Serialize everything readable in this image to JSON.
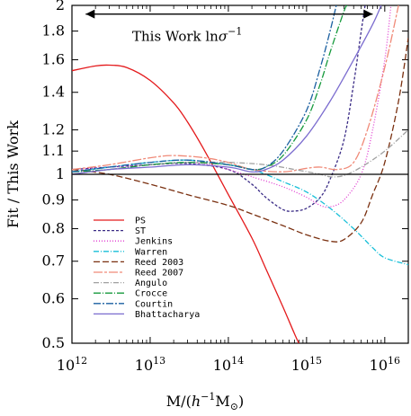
{
  "chart_data": {
    "type": "line",
    "xlabel": "M/(h⁻¹M⊙)",
    "ylabel": "Fit / This Work",
    "xscale": "log",
    "yscale": "log",
    "xlim": [
      1000000000000.0,
      2e+16
    ],
    "ylim": [
      0.5,
      2
    ],
    "x_ticks": [
      {
        "value": 1000000000000.0,
        "base": "10",
        "exp": "12"
      },
      {
        "value": 10000000000000.0,
        "base": "10",
        "exp": "13"
      },
      {
        "value": 100000000000000.0,
        "base": "10",
        "exp": "14"
      },
      {
        "value": 1000000000000000.0,
        "base": "10",
        "exp": "15"
      },
      {
        "value": 1e+16,
        "base": "10",
        "exp": "16"
      }
    ],
    "y_ticks": [
      {
        "value": 0.5,
        "label": "0.5"
      },
      {
        "value": 0.6,
        "label": "0.6"
      },
      {
        "value": 0.7,
        "label": "0.7"
      },
      {
        "value": 0.8,
        "label": "0.8"
      },
      {
        "value": 0.9,
        "label": "0.9"
      },
      {
        "value": 1.0,
        "label": "1"
      },
      {
        "value": 1.1,
        "label": "1.1"
      },
      {
        "value": 1.2,
        "label": "1.2"
      },
      {
        "value": 1.4,
        "label": "1.4"
      },
      {
        "value": 1.6,
        "label": "1.6"
      },
      {
        "value": 1.8,
        "label": "1.8"
      },
      {
        "value": 2.0,
        "label": "2"
      }
    ],
    "reference_line": 1.0,
    "annotation": {
      "text": "This Work ln",
      "sigma": "σ",
      "sup": "−1",
      "x_range": [
        1500000000000.0,
        7000000000000000.0
      ],
      "y": 1.93
    },
    "legend_position": "lower-left",
    "series": [
      {
        "name": "PS",
        "color": "#e41a1c",
        "dash": "",
        "points": [
          [
            1000000000000.0,
            1.53
          ],
          [
            2000000000000.0,
            1.56
          ],
          [
            3000000000000.0,
            1.565
          ],
          [
            5000000000000.0,
            1.55
          ],
          [
            10000000000000.0,
            1.47
          ],
          [
            20000000000000.0,
            1.34
          ],
          [
            30000000000000.0,
            1.24
          ],
          [
            50000000000000.0,
            1.1
          ],
          [
            100000000000000.0,
            0.92
          ],
          [
            200000000000000.0,
            0.77
          ],
          [
            300000000000000.0,
            0.68
          ],
          [
            500000000000000.0,
            0.58
          ],
          [
            700000000000000.0,
            0.52
          ],
          [
            850000000000000.0,
            0.49
          ]
        ]
      },
      {
        "name": "ST",
        "color": "#3b2c86",
        "dash": "3,2",
        "points": [
          [
            1000000000000.0,
            1.02
          ],
          [
            3000000000000.0,
            1.03
          ],
          [
            10000000000000.0,
            1.04
          ],
          [
            30000000000000.0,
            1.045
          ],
          [
            100000000000000.0,
            1.02
          ],
          [
            200000000000000.0,
            0.96
          ],
          [
            300000000000000.0,
            0.91
          ],
          [
            500000000000000.0,
            0.865
          ],
          [
            700000000000000.0,
            0.86
          ],
          [
            1000000000000000.0,
            0.87
          ],
          [
            1500000000000000.0,
            0.91
          ],
          [
            2000000000000000.0,
            0.98
          ],
          [
            3000000000000000.0,
            1.15
          ],
          [
            4000000000000000.0,
            1.45
          ],
          [
            5000000000000000.0,
            1.8
          ],
          [
            5600000000000000.0,
            2.0
          ]
        ]
      },
      {
        "name": "Jenkins",
        "color": "#e03ad0",
        "dash": "1,2",
        "points": [
          [
            1000000000000.0,
            1.02
          ],
          [
            3000000000000.0,
            1.03
          ],
          [
            10000000000000.0,
            1.04
          ],
          [
            30000000000000.0,
            1.05
          ],
          [
            60000000000000.0,
            1.04
          ],
          [
            100000000000000.0,
            1.02
          ],
          [
            200000000000000.0,
            0.99
          ],
          [
            500000000000000.0,
            0.95
          ],
          [
            1000000000000000.0,
            0.91
          ],
          [
            1500000000000000.0,
            0.88
          ],
          [
            2000000000000000.0,
            0.875
          ],
          [
            3000000000000000.0,
            0.9
          ],
          [
            5000000000000000.0,
            1.0
          ],
          [
            7000000000000000.0,
            1.2
          ],
          [
            1e+16,
            1.6
          ],
          [
            1.2e+16,
            2.0
          ]
        ]
      },
      {
        "name": "Warren",
        "color": "#17bfd8",
        "dash": "6,2,1,2",
        "points": [
          [
            1000000000000.0,
            1.01
          ],
          [
            3000000000000.0,
            1.03
          ],
          [
            10000000000000.0,
            1.05
          ],
          [
            30000000000000.0,
            1.06
          ],
          [
            100000000000000.0,
            1.04
          ],
          [
            200000000000000.0,
            1.02
          ],
          [
            300000000000000.0,
            1.0
          ],
          [
            500000000000000.0,
            0.97
          ],
          [
            1000000000000000.0,
            0.93
          ],
          [
            2000000000000000.0,
            0.87
          ],
          [
            4000000000000000.0,
            0.8
          ],
          [
            7000000000000000.0,
            0.74
          ],
          [
            1e+16,
            0.71
          ],
          [
            2e+16,
            0.69
          ]
        ]
      },
      {
        "name": "Reed 2003",
        "color": "#7a3010",
        "dash": "7,3",
        "points": [
          [
            1000000000000.0,
            1.02
          ],
          [
            3000000000000.0,
            1.0
          ],
          [
            10000000000000.0,
            0.96
          ],
          [
            30000000000000.0,
            0.92
          ],
          [
            100000000000000.0,
            0.88
          ],
          [
            200000000000000.0,
            0.85
          ],
          [
            500000000000000.0,
            0.81
          ],
          [
            1000000000000000.0,
            0.78
          ],
          [
            2000000000000000.0,
            0.76
          ],
          [
            3000000000000000.0,
            0.765
          ],
          [
            5000000000000000.0,
            0.82
          ],
          [
            7000000000000000.0,
            0.92
          ],
          [
            1e+16,
            1.05
          ],
          [
            1.5e+16,
            1.35
          ],
          [
            2e+16,
            1.75
          ]
        ]
      },
      {
        "name": "Reed 2007",
        "color": "#f08a78",
        "dash": "10,2,3,2",
        "points": [
          [
            1000000000000.0,
            1.02
          ],
          [
            3000000000000.0,
            1.04
          ],
          [
            10000000000000.0,
            1.07
          ],
          [
            20000000000000.0,
            1.08
          ],
          [
            50000000000000.0,
            1.07
          ],
          [
            100000000000000.0,
            1.05
          ],
          [
            200000000000000.0,
            1.02
          ],
          [
            500000000000000.0,
            1.01
          ],
          [
            1000000000000000.0,
            1.025
          ],
          [
            1500000000000000.0,
            1.03
          ],
          [
            2500000000000000.0,
            1.02
          ],
          [
            4000000000000000.0,
            1.05
          ],
          [
            6000000000000000.0,
            1.2
          ],
          [
            1e+16,
            1.55
          ],
          [
            1.5e+16,
            2.0
          ]
        ]
      },
      {
        "name": "Angulo",
        "color": "#a0a0a0",
        "dash": "6,2,1,2",
        "points": [
          [
            1000000000000.0,
            1.0
          ],
          [
            3000000000000.0,
            1.02
          ],
          [
            10000000000000.0,
            1.04
          ],
          [
            30000000000000.0,
            1.05
          ],
          [
            100000000000000.0,
            1.05
          ],
          [
            300000000000000.0,
            1.04
          ],
          [
            700000000000000.0,
            1.02
          ],
          [
            1500000000000000.0,
            1.0
          ],
          [
            2000000000000000.0,
            0.99
          ],
          [
            3000000000000000.0,
            0.995
          ],
          [
            5000000000000000.0,
            1.03
          ],
          [
            1e+16,
            1.1
          ],
          [
            2e+16,
            1.2
          ]
        ]
      },
      {
        "name": "Crocce",
        "color": "#159a3c",
        "dash": "8,2,1,2",
        "points": [
          [
            1000000000000.0,
            1.01
          ],
          [
            3000000000000.0,
            1.02
          ],
          [
            10000000000000.0,
            1.04
          ],
          [
            30000000000000.0,
            1.05
          ],
          [
            100000000000000.0,
            1.04
          ],
          [
            200000000000000.0,
            1.02
          ],
          [
            300000000000000.0,
            1.03
          ],
          [
            500000000000000.0,
            1.08
          ],
          [
            1000000000000000.0,
            1.25
          ],
          [
            1500000000000000.0,
            1.45
          ],
          [
            2000000000000000.0,
            1.65
          ],
          [
            3000000000000000.0,
            1.95
          ],
          [
            3300000000000000.0,
            2.0
          ]
        ]
      },
      {
        "name": "Courtin",
        "color": "#1a5fa0",
        "dash": "8,2,2,2",
        "points": [
          [
            1000000000000.0,
            1.01
          ],
          [
            3000000000000.0,
            1.03
          ],
          [
            10000000000000.0,
            1.05
          ],
          [
            30000000000000.0,
            1.06
          ],
          [
            100000000000000.0,
            1.04
          ],
          [
            200000000000000.0,
            1.02
          ],
          [
            300000000000000.0,
            1.03
          ],
          [
            500000000000000.0,
            1.1
          ],
          [
            1000000000000000.0,
            1.3
          ],
          [
            1500000000000000.0,
            1.55
          ],
          [
            2000000000000000.0,
            1.8
          ],
          [
            2400000000000000.0,
            2.0
          ]
        ]
      },
      {
        "name": "Bhattacharya",
        "color": "#7b6ccf",
        "dash": "",
        "points": [
          [
            1000000000000.0,
            1.0
          ],
          [
            3000000000000.0,
            1.02
          ],
          [
            10000000000000.0,
            1.03
          ],
          [
            30000000000000.0,
            1.04
          ],
          [
            100000000000000.0,
            1.03
          ],
          [
            200000000000000.0,
            1.01
          ],
          [
            300000000000000.0,
            1.02
          ],
          [
            500000000000000.0,
            1.06
          ],
          [
            1000000000000000.0,
            1.17
          ],
          [
            2000000000000000.0,
            1.35
          ],
          [
            4000000000000000.0,
            1.6
          ],
          [
            7000000000000000.0,
            1.85
          ],
          [
            9000000000000000.0,
            2.0
          ]
        ]
      }
    ]
  }
}
